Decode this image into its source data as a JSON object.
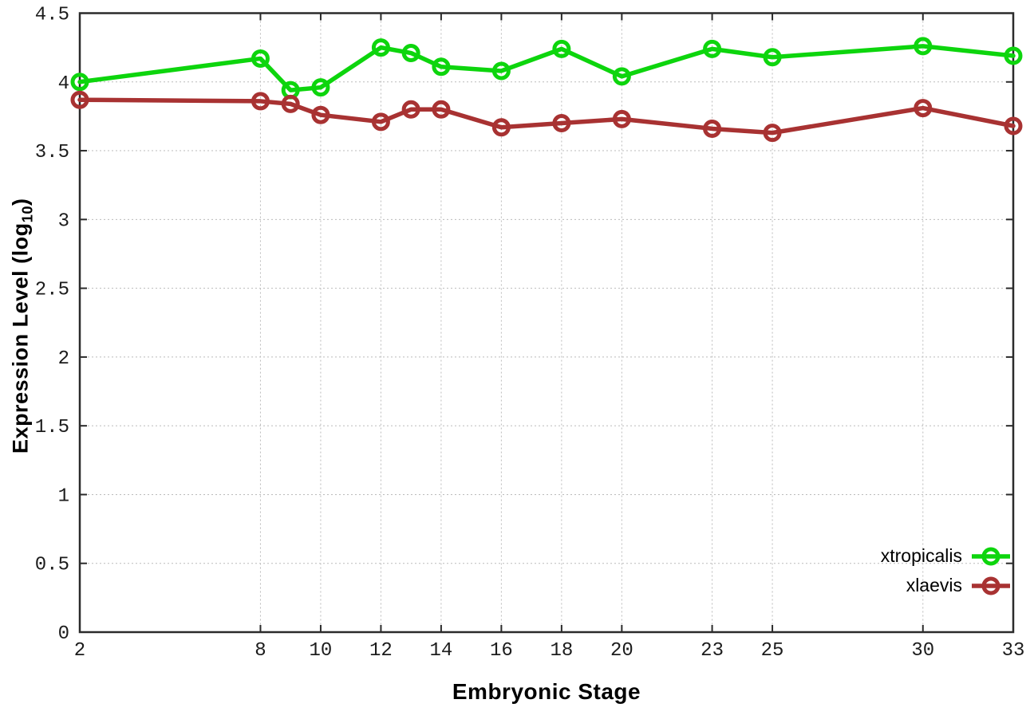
{
  "chart_data": {
    "type": "line",
    "title": "",
    "xlabel": "Embryonic Stage",
    "ylabel": "Expression Level (log10)",
    "ylabel_prefix": "Expression Level (log",
    "ylabel_sub": "10",
    "ylabel_suffix": ")",
    "x": [
      2,
      8,
      9,
      10,
      12,
      13,
      14,
      16,
      18,
      20,
      23,
      25,
      30,
      33
    ],
    "xtick_labels": [
      "2",
      "8",
      "10",
      "12",
      "14",
      "16",
      "18",
      "20",
      "23",
      "25",
      "30",
      "33"
    ],
    "xtick_values": [
      2,
      8,
      10,
      12,
      14,
      16,
      18,
      20,
      23,
      25,
      30,
      33
    ],
    "ytick_labels": [
      "0",
      "0.5",
      "1",
      "1.5",
      "2",
      "2.5",
      "3",
      "3.5",
      "4",
      "4.5"
    ],
    "ytick_values": [
      0,
      0.5,
      1,
      1.5,
      2,
      2.5,
      3,
      3.5,
      4,
      4.5
    ],
    "xlim": [
      2,
      33
    ],
    "ylim": [
      0,
      4.5
    ],
    "grid": true,
    "legend_position": "bottom-right",
    "series": [
      {
        "name": "xtropicalis",
        "color": "#0dd50d",
        "values": [
          4.0,
          4.17,
          3.94,
          3.96,
          4.25,
          4.21,
          4.11,
          4.08,
          4.24,
          4.04,
          4.24,
          4.18,
          4.26,
          4.19
        ]
      },
      {
        "name": "xlaevis",
        "color": "#a83232",
        "values": [
          3.87,
          3.86,
          3.84,
          3.76,
          3.71,
          3.8,
          3.8,
          3.67,
          3.7,
          3.73,
          3.66,
          3.63,
          3.81,
          3.68
        ]
      }
    ]
  },
  "style": {
    "axis_color": "#2b2b2b",
    "grid_color": "#bbbbbb",
    "tick_text_color": "#1c1c1c",
    "background": "#ffffff"
  }
}
